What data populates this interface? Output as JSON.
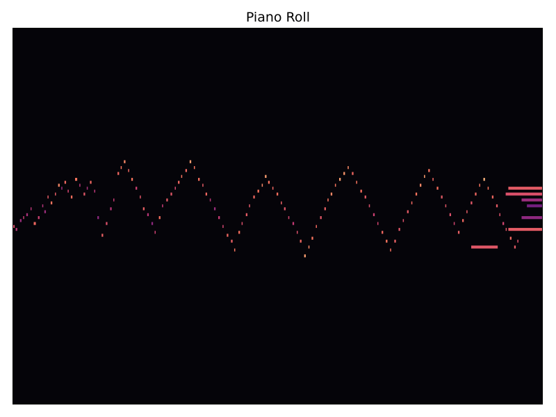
{
  "chart_data": {
    "type": "heatmap",
    "title": "Piano Roll",
    "xlabel": "",
    "ylabel": "",
    "x_ticks": false,
    "y_ticks": false,
    "grid": false,
    "colormap": "magma",
    "background": "#050409",
    "xlim": [
      0,
      1000
    ],
    "ylim": [
      0,
      128
    ],
    "velocity_range": [
      0,
      127
    ],
    "note_summary": {
      "pitch_range": [
        38,
        84
      ],
      "main_register_pitch_range": [
        50,
        81
      ],
      "sustained_final_notes": [
        {
          "pitch": 73,
          "start": 935,
          "end": 1000,
          "velocity": 90
        },
        {
          "pitch": 71,
          "start": 930,
          "end": 1000,
          "velocity": 85
        },
        {
          "pitch": 69,
          "start": 960,
          "end": 1000,
          "velocity": 60
        },
        {
          "pitch": 67,
          "start": 970,
          "end": 1000,
          "velocity": 45
        },
        {
          "pitch": 63,
          "start": 960,
          "end": 1000,
          "velocity": 55
        },
        {
          "pitch": 53,
          "start": 865,
          "end": 915,
          "velocity": 88
        },
        {
          "pitch": 59,
          "start": 935,
          "end": 1000,
          "velocity": 90
        }
      ]
    },
    "notes": [
      [
        0,
        60,
        4,
        85
      ],
      [
        6,
        59,
        3,
        70
      ],
      [
        14,
        62,
        3,
        60
      ],
      [
        20,
        63,
        2,
        75
      ],
      [
        26,
        64,
        3,
        65
      ],
      [
        34,
        66,
        2,
        70
      ],
      [
        40,
        61,
        4,
        95
      ],
      [
        48,
        63,
        3,
        78
      ],
      [
        56,
        67,
        2,
        68
      ],
      [
        60,
        65,
        3,
        60
      ],
      [
        66,
        70,
        2,
        90
      ],
      [
        72,
        68,
        3,
        100
      ],
      [
        80,
        71,
        2,
        90
      ],
      [
        86,
        74,
        3,
        105
      ],
      [
        92,
        73,
        2,
        60
      ],
      [
        98,
        75,
        3,
        95
      ],
      [
        104,
        72,
        2,
        80
      ],
      [
        110,
        70,
        3,
        98
      ],
      [
        118,
        76,
        4,
        100
      ],
      [
        126,
        74,
        2,
        70
      ],
      [
        134,
        71,
        3,
        88
      ],
      [
        140,
        73,
        2,
        65
      ],
      [
        146,
        75,
        3,
        95
      ],
      [
        154,
        72,
        2,
        70
      ],
      [
        160,
        63,
        3,
        55
      ],
      [
        168,
        57,
        3,
        92
      ],
      [
        176,
        61,
        3,
        85
      ],
      [
        184,
        66,
        3,
        70
      ],
      [
        190,
        69,
        2,
        75
      ],
      [
        198,
        78,
        3,
        95
      ],
      [
        204,
        80,
        2,
        100
      ],
      [
        210,
        82,
        3,
        105
      ],
      [
        218,
        79,
        2,
        95
      ],
      [
        224,
        76,
        3,
        100
      ],
      [
        232,
        73,
        3,
        78
      ],
      [
        240,
        70,
        2,
        88
      ],
      [
        246,
        66,
        3,
        92
      ],
      [
        254,
        64,
        3,
        70
      ],
      [
        262,
        61,
        3,
        55
      ],
      [
        268,
        58,
        2,
        78
      ],
      [
        276,
        63,
        3,
        98
      ],
      [
        282,
        67,
        2,
        75
      ],
      [
        290,
        69,
        3,
        90
      ],
      [
        298,
        71,
        3,
        88
      ],
      [
        306,
        73,
        2,
        82
      ],
      [
        312,
        75,
        3,
        95
      ],
      [
        318,
        77,
        2,
        100
      ],
      [
        326,
        79,
        3,
        95
      ],
      [
        334,
        82,
        3,
        110
      ],
      [
        342,
        80,
        2,
        100
      ],
      [
        350,
        76,
        3,
        98
      ],
      [
        358,
        74,
        2,
        90
      ],
      [
        364,
        71,
        3,
        95
      ],
      [
        372,
        69,
        2,
        70
      ],
      [
        380,
        66,
        3,
        60
      ],
      [
        388,
        63,
        3,
        75
      ],
      [
        396,
        60,
        2,
        80
      ],
      [
        404,
        57,
        3,
        95
      ],
      [
        412,
        55,
        3,
        92
      ],
      [
        418,
        52,
        2,
        100
      ],
      [
        426,
        58,
        3,
        98
      ],
      [
        432,
        61,
        2,
        85
      ],
      [
        440,
        64,
        3,
        90
      ],
      [
        446,
        67,
        2,
        88
      ],
      [
        454,
        70,
        3,
        95
      ],
      [
        462,
        72,
        3,
        100
      ],
      [
        470,
        74,
        2,
        105
      ],
      [
        476,
        77,
        3,
        110
      ],
      [
        482,
        75,
        3,
        100
      ],
      [
        490,
        73,
        2,
        95
      ],
      [
        498,
        71,
        3,
        98
      ],
      [
        506,
        68,
        2,
        92
      ],
      [
        512,
        66,
        3,
        88
      ],
      [
        520,
        63,
        2,
        80
      ],
      [
        528,
        61,
        3,
        75
      ],
      [
        536,
        58,
        2,
        85
      ],
      [
        542,
        55,
        3,
        95
      ],
      [
        550,
        50,
        3,
        110
      ],
      [
        558,
        53,
        2,
        105
      ],
      [
        564,
        56,
        3,
        100
      ],
      [
        572,
        60,
        2,
        95
      ],
      [
        580,
        63,
        3,
        88
      ],
      [
        588,
        66,
        3,
        92
      ],
      [
        594,
        69,
        2,
        100
      ],
      [
        600,
        71,
        3,
        105
      ],
      [
        608,
        74,
        2,
        100
      ],
      [
        616,
        76,
        3,
        110
      ],
      [
        624,
        78,
        3,
        108
      ],
      [
        632,
        80,
        2,
        105
      ],
      [
        640,
        78,
        3,
        95
      ],
      [
        648,
        75,
        2,
        100
      ],
      [
        656,
        72,
        3,
        98
      ],
      [
        664,
        70,
        3,
        90
      ],
      [
        672,
        67,
        2,
        85
      ],
      [
        680,
        64,
        3,
        78
      ],
      [
        688,
        61,
        2,
        80
      ],
      [
        696,
        58,
        3,
        95
      ],
      [
        704,
        55,
        3,
        100
      ],
      [
        712,
        52,
        2,
        98
      ],
      [
        720,
        55,
        3,
        92
      ],
      [
        728,
        59,
        3,
        88
      ],
      [
        736,
        62,
        2,
        85
      ],
      [
        744,
        65,
        3,
        90
      ],
      [
        752,
        68,
        2,
        95
      ],
      [
        760,
        71,
        3,
        100
      ],
      [
        768,
        74,
        3,
        105
      ],
      [
        776,
        77,
        2,
        110
      ],
      [
        784,
        79,
        3,
        100
      ],
      [
        792,
        76,
        2,
        95
      ],
      [
        800,
        73,
        3,
        98
      ],
      [
        808,
        70,
        3,
        90
      ],
      [
        816,
        67,
        2,
        88
      ],
      [
        824,
        64,
        3,
        85
      ],
      [
        832,
        61,
        2,
        80
      ],
      [
        840,
        58,
        3,
        92
      ],
      [
        848,
        62,
        3,
        95
      ],
      [
        856,
        65,
        2,
        90
      ],
      [
        864,
        68,
        3,
        88
      ],
      [
        872,
        71,
        3,
        95
      ],
      [
        880,
        74,
        2,
        100
      ],
      [
        888,
        76,
        3,
        115
      ],
      [
        896,
        73,
        2,
        100
      ],
      [
        904,
        70,
        3,
        95
      ],
      [
        912,
        67,
        3,
        90
      ],
      [
        918,
        64,
        2,
        85
      ],
      [
        924,
        61,
        3,
        80
      ],
      [
        930,
        59,
        2,
        88
      ],
      [
        938,
        56,
        3,
        95
      ],
      [
        946,
        53,
        3,
        90
      ],
      [
        952,
        55,
        2,
        85
      ]
    ]
  }
}
